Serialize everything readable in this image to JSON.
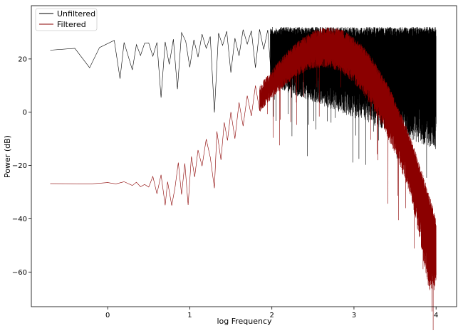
{
  "chart_data": {
    "type": "line",
    "xlabel": "log Frequency",
    "ylabel": "Power (dB)",
    "xlim": [
      -0.93,
      4.25
    ],
    "ylim": [
      -73,
      40
    ],
    "x_ticks": [
      {
        "value": 0,
        "label": "0"
      },
      {
        "value": 1,
        "label": "1"
      },
      {
        "value": 2,
        "label": "2"
      },
      {
        "value": 3,
        "label": "3"
      },
      {
        "value": 4,
        "label": "4"
      }
    ],
    "y_ticks": [
      {
        "value": 20,
        "label": "20"
      },
      {
        "value": 0,
        "label": "0"
      },
      {
        "value": -20,
        "label": "−20"
      },
      {
        "value": -40,
        "label": "−40"
      },
      {
        "value": -60,
        "label": "−60"
      }
    ],
    "grid": false,
    "legend_position": "top-left",
    "x_range": [
      -0.7,
      4.0
    ],
    "series": [
      {
        "name": "Unfiltered",
        "color": "#000000",
        "linewidth": 0.6,
        "points": [
          [
            -0.7,
            23.3
          ],
          [
            -0.4,
            24.0
          ],
          [
            -0.22,
            16.7
          ],
          [
            -0.1,
            24.3
          ],
          [
            0.08,
            27.0
          ],
          [
            0.15,
            12.6
          ],
          [
            0.2,
            26.2
          ],
          [
            0.3,
            15.9
          ],
          [
            0.35,
            25.4
          ],
          [
            0.4,
            21.3
          ],
          [
            0.45,
            25.9
          ],
          [
            0.5,
            26.0
          ],
          [
            0.55,
            21.0
          ],
          [
            0.6,
            26.2
          ],
          [
            0.65,
            5.5
          ],
          [
            0.7,
            26.4
          ],
          [
            0.75,
            18.0
          ],
          [
            0.8,
            27.4
          ],
          [
            0.85,
            8.7
          ],
          [
            0.9,
            29.9
          ],
          [
            0.95,
            26.7
          ],
          [
            1.0,
            16.9
          ],
          [
            1.05,
            27.2
          ],
          [
            1.1,
            20.7
          ],
          [
            1.15,
            29.3
          ],
          [
            1.2,
            24.0
          ],
          [
            1.25,
            28.4
          ],
          [
            1.3,
            -0.1
          ],
          [
            1.35,
            29.7
          ],
          [
            1.4,
            25.1
          ],
          [
            1.45,
            30.4
          ],
          [
            1.5,
            14.9
          ],
          [
            1.55,
            27.8
          ],
          [
            1.6,
            21.2
          ],
          [
            1.65,
            31.0
          ],
          [
            1.7,
            25.6
          ],
          [
            1.75,
            30.6
          ],
          [
            1.8,
            16.7
          ],
          [
            1.85,
            31.1
          ],
          [
            1.9,
            23.6
          ],
          [
            1.95,
            30.9
          ],
          [
            2.0,
            10.3
          ]
        ],
        "dense_segment": {
          "x_range": [
            1.98,
            4.0
          ],
          "upper_db": 32,
          "lower_db_start": 10,
          "lower_db_end": -14
        }
      },
      {
        "name": "Filtered",
        "color": "#8b0000",
        "linewidth": 0.6,
        "points": [
          [
            -0.7,
            -26.8
          ],
          [
            -0.2,
            -26.9
          ],
          [
            0.0,
            -26.4
          ],
          [
            0.1,
            -26.9
          ],
          [
            0.2,
            -26.1
          ],
          [
            0.3,
            -27.5
          ],
          [
            0.35,
            -26.3
          ],
          [
            0.4,
            -28.0
          ],
          [
            0.45,
            -27.1
          ],
          [
            0.5,
            -28.1
          ],
          [
            0.55,
            -24.1
          ],
          [
            0.6,
            -30.6
          ],
          [
            0.65,
            -23.5
          ],
          [
            0.7,
            -34.9
          ],
          [
            0.73,
            -26.1
          ],
          [
            0.78,
            -35.0
          ],
          [
            0.82,
            -28.3
          ],
          [
            0.86,
            -18.9
          ],
          [
            0.9,
            -30.9
          ],
          [
            0.94,
            -19.2
          ],
          [
            0.98,
            -34.8
          ],
          [
            1.02,
            -16.6
          ],
          [
            1.06,
            -24.3
          ],
          [
            1.1,
            -14.2
          ],
          [
            1.15,
            -20.2
          ],
          [
            1.2,
            -10.1
          ],
          [
            1.25,
            -16.9
          ],
          [
            1.3,
            -28.5
          ],
          [
            1.33,
            -7.2
          ],
          [
            1.38,
            -17.9
          ],
          [
            1.42,
            -3.8
          ],
          [
            1.46,
            -10.6
          ],
          [
            1.5,
            0.1
          ],
          [
            1.55,
            -9.9
          ],
          [
            1.6,
            3.7
          ],
          [
            1.65,
            -5.2
          ],
          [
            1.7,
            6.2
          ],
          [
            1.75,
            -1.4
          ],
          [
            1.8,
            10.0
          ],
          [
            1.85,
            0.8
          ]
        ],
        "dense_segment": {
          "x_range": [
            1.85,
            4.0
          ],
          "upper_peak_db": 32,
          "peak_x": 2.7,
          "lower_db_end": -67
        }
      }
    ]
  }
}
